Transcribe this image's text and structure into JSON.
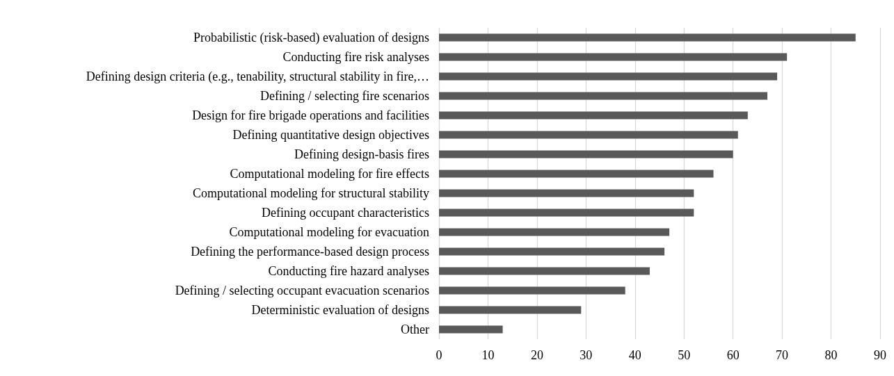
{
  "chart_data": {
    "type": "bar",
    "orientation": "horizontal",
    "categories": [
      "Probabilistic (risk-based) evaluation of designs",
      "Conducting fire risk analyses",
      "Defining design criteria (e.g., tenability, structural stability in fire,…",
      "Defining / selecting fire scenarios",
      "Design for fire brigade operations and facilities",
      "Defining quantitative design objectives",
      "Defining design-basis fires",
      "Computational modeling for fire effects",
      "Computational modeling for structural stability",
      "Defining occupant characteristics",
      "Computational modeling for evacuation",
      "Defining the performance-based design process",
      "Conducting fire hazard analyses",
      "Defining / selecting occupant evacuation scenarios",
      "Deterministic evaluation of designs",
      "Other"
    ],
    "values": [
      85,
      71,
      69,
      67,
      63,
      61,
      60,
      56,
      52,
      52,
      47,
      46,
      43,
      38,
      29,
      13
    ],
    "color": "#595959",
    "xlim": [
      0,
      90
    ],
    "xticks": [
      0,
      10,
      20,
      30,
      40,
      50,
      60,
      70,
      80,
      90
    ],
    "grid": "x"
  }
}
